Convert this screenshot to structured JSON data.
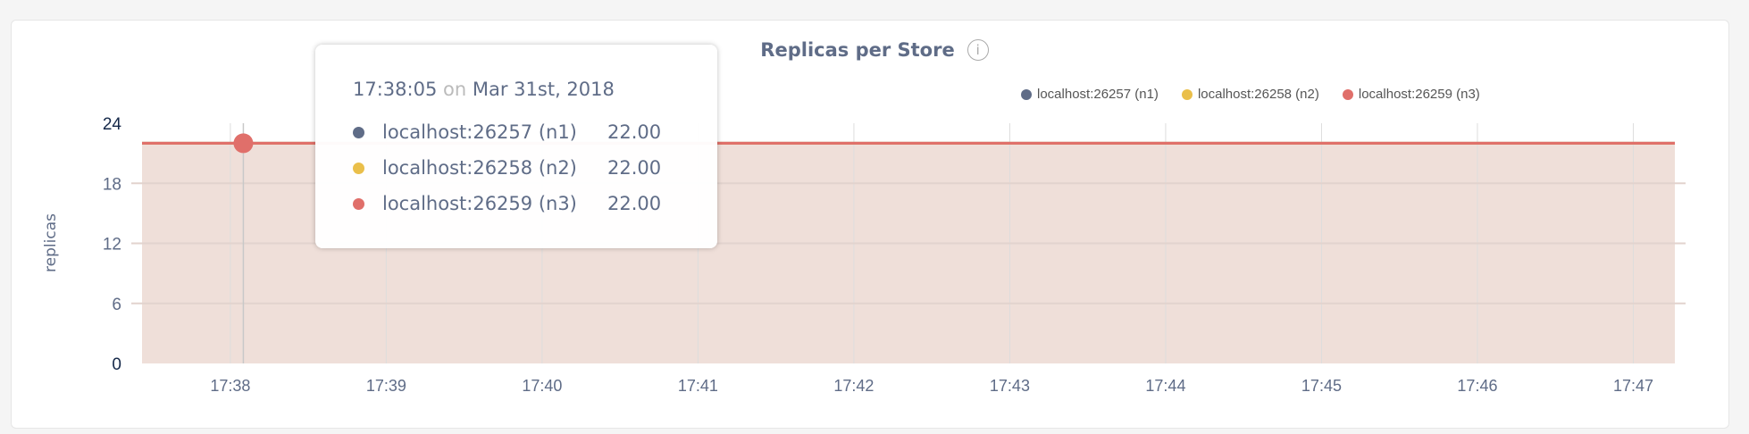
{
  "chart_data": {
    "type": "area",
    "title": "Replicas per Store",
    "ylabel": "replicas",
    "xlabel": "",
    "ylim": [
      0,
      24
    ],
    "yticks": [
      "0",
      "6",
      "12",
      "18",
      "24"
    ],
    "xticks": [
      "17:38",
      "17:39",
      "17:40",
      "17:41",
      "17:42",
      "17:43",
      "17:44",
      "17:45",
      "17:46",
      "17:47"
    ],
    "xlim": [
      "17:37:26",
      "17:47:16"
    ],
    "grid": true,
    "legend_position": "top-right",
    "series": [
      {
        "name": "localhost:26257 (n1)",
        "color": "#5f6c87",
        "values_constant": 22
      },
      {
        "name": "localhost:26258 (n2)",
        "color": "#eabf4a",
        "values_constant": 22
      },
      {
        "name": "localhost:26259 (n3)",
        "color": "#e06f6a",
        "values_constant": 22
      }
    ],
    "fill_color": "#efdfd9"
  },
  "tooltip": {
    "time": "17:38:05",
    "on": "on",
    "date": "Mar 31st, 2018",
    "hover_x": "17:38:05",
    "rows": [
      {
        "name": "localhost:26257 (n1)",
        "value": "22.00"
      },
      {
        "name": "localhost:26258 (n2)",
        "value": "22.00"
      },
      {
        "name": "localhost:26259 (n3)",
        "value": "22.00"
      }
    ]
  },
  "info_icon": "info-circle-icon"
}
